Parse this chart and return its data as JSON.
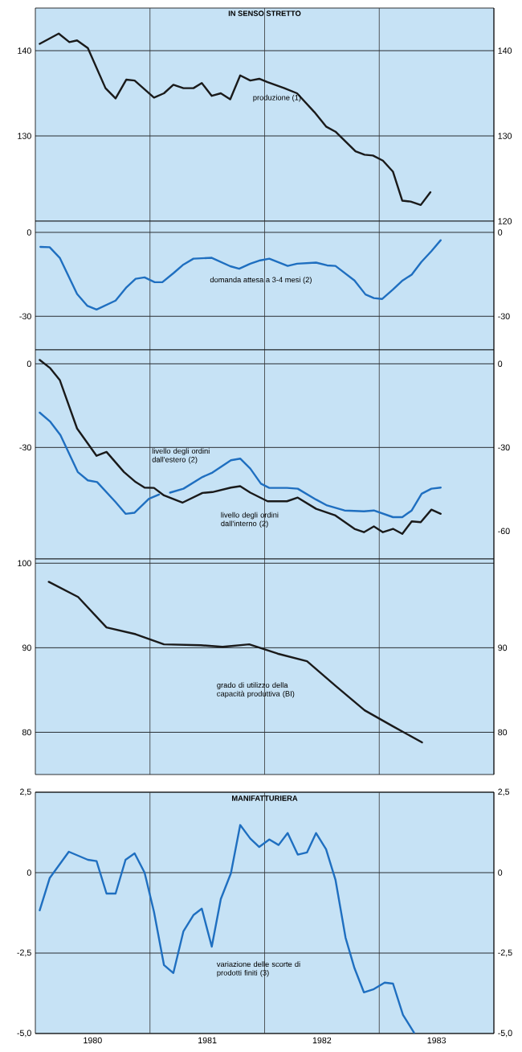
{
  "chart_data": [
    {
      "type": "line",
      "title": "IN SENSO STRETTO",
      "xlim": [
        1980,
        1984
      ],
      "ylim": [
        120,
        145
      ],
      "yticks": [
        130,
        140
      ],
      "y2lim": [
        120,
        145
      ],
      "y2ticks": [
        120,
        130,
        140
      ],
      "tick_labels": "y",
      "grid": "y",
      "legend": false,
      "ref_lines": [
        {
          "axis": "x",
          "value": 1981,
          "color": "#333333"
        },
        {
          "axis": "x",
          "value": 1982,
          "color": "#333333"
        },
        {
          "axis": "x",
          "value": 1983,
          "color": "#333333"
        }
      ],
      "series": [
        {
          "name": "produzione (1)",
          "color": "#1a1a1a",
          "x": [
            1980.038,
            1980.204,
            1980.297,
            1980.364,
            1980.458,
            1980.612,
            1980.7,
            1980.793,
            1980.866,
            1981.035,
            1981.122,
            1981.204,
            1981.292,
            1981.379,
            1981.452,
            1981.539,
            1981.618,
            1981.7,
            1981.787,
            1981.875,
            1981.953,
            1982.026,
            1982.172,
            1982.283,
            1982.434,
            1982.536,
            1982.618,
            1982.793,
            1982.872,
            1982.945,
            1983.032,
            1983.12,
            1983.201,
            1983.274,
            1983.362,
            1983.446
          ],
          "values": [
            140.8,
            142.0,
            141.0,
            141.2,
            140.3,
            135.6,
            134.4,
            136.6,
            136.5,
            134.5,
            135.0,
            136.0,
            135.6,
            135.6,
            136.2,
            134.7,
            135.0,
            134.3,
            137.1,
            136.5,
            136.7,
            136.3,
            135.6,
            135.0,
            132.8,
            131.1,
            130.5,
            128.2,
            127.8,
            127.7,
            127.1,
            125.8,
            122.4,
            122.3,
            121.9,
            123.4
          ]
        }
      ]
    },
    {
      "type": "line",
      "xlim": [
        1980,
        1984
      ],
      "ylim": [
        -42,
        4
      ],
      "yticks": [
        -30,
        0
      ],
      "y2lim": [
        -42,
        4
      ],
      "y2ticks": [
        -30,
        0
      ],
      "tick_labels": "y",
      "grid": "y",
      "legend": false,
      "ref_lines": [
        {
          "axis": "x",
          "value": 1981,
          "color": "#333333"
        },
        {
          "axis": "x",
          "value": 1982,
          "color": "#333333"
        },
        {
          "axis": "x",
          "value": 1983,
          "color": "#333333"
        }
      ],
      "series": [
        {
          "name": "domanda attesa a 3-4 mesi (2)",
          "color": "#1f6fc0",
          "x": [
            1980.044,
            1980.125,
            1980.213,
            1980.364,
            1980.452,
            1980.534,
            1980.7,
            1980.796,
            1980.875,
            1980.953,
            1981.041,
            1981.108,
            1981.21,
            1981.292,
            1981.379,
            1981.539,
            1981.7,
            1981.778,
            1981.875,
            1981.962,
            1982.041,
            1982.201,
            1982.283,
            1982.449,
            1982.545,
            1982.618,
            1982.784,
            1982.88,
            1982.953,
            1983.026,
            1983.12,
            1983.204,
            1983.283,
            1983.367,
            1983.455,
            1983.536
          ],
          "values": [
            -5.2,
            -5.3,
            -9.1,
            -22.0,
            -26.2,
            -27.6,
            -24.4,
            -19.6,
            -16.6,
            -16.1,
            -17.8,
            -17.8,
            -14.4,
            -11.5,
            -9.4,
            -9.1,
            -12.1,
            -13.0,
            -11.2,
            -10.0,
            -9.4,
            -12.0,
            -11.2,
            -10.8,
            -11.8,
            -12.0,
            -17.2,
            -22.2,
            -23.5,
            -23.8,
            -20.4,
            -17.2,
            -15.1,
            -10.6,
            -6.7,
            -2.8
          ]
        }
      ]
    },
    {
      "type": "line",
      "xlim": [
        1980,
        1984
      ],
      "ylim": [
        -70,
        5
      ],
      "yticks": [
        -30,
        0
      ],
      "y2lim": [
        -70,
        5
      ],
      "y2ticks": [
        -60,
        -30,
        0
      ],
      "tick_labels": "y",
      "grid": "y",
      "legend": false,
      "ref_lines": [
        {
          "axis": "x",
          "value": 1981,
          "color": "#333333"
        },
        {
          "axis": "x",
          "value": 1982,
          "color": "#333333"
        },
        {
          "axis": "x",
          "value": 1983,
          "color": "#333333"
        }
      ],
      "series": [
        {
          "name": "livello degli ordini dall'estero (2)",
          "color": "#1f6fc0",
          "x": [
            1980.038,
            1980.131,
            1980.219,
            1980.37,
            1980.458,
            1980.539,
            1980.7,
            1980.787,
            1980.866,
            1980.991,
            1981.079,
            1981.127,
            1981.175,
            1981.292,
            1981.458,
            1981.545,
            1981.706,
            1981.787,
            1981.875,
            1981.968,
            1982.041,
            1982.195,
            1982.289,
            1982.449,
            1982.545,
            1982.697,
            1982.866,
            1982.953,
            1983.12,
            1983.201,
            1983.283,
            1983.37,
            1983.455,
            1983.536
          ],
          "values": [
            -17.5,
            -20.8,
            -25.6,
            -38.8,
            -41.8,
            -42.4,
            -49.6,
            -53.8,
            -53.4,
            -48.4,
            -46.9,
            null,
            -46.2,
            -44.8,
            -40.6,
            -39.0,
            -34.6,
            -34.0,
            -37.6,
            -43.0,
            -44.5,
            -44.5,
            -44.8,
            -48.7,
            -50.8,
            -52.6,
            -52.9,
            -52.6,
            -55.0,
            -55.0,
            -52.6,
            -46.6,
            -44.8,
            -44.4
          ]
        },
        {
          "name": "livello degli ordini dall'interno (2)",
          "color": "#1a1a1a",
          "x": [
            1980.038,
            1980.131,
            1980.213,
            1980.364,
            1980.458,
            1980.534,
            1980.621,
            1980.773,
            1980.875,
            1980.953,
            1981.035,
            1981.122,
            1981.283,
            1981.458,
            1981.545,
            1981.706,
            1981.787,
            1981.875,
            1982.026,
            1982.195,
            1982.289,
            1982.449,
            1982.618,
            1982.784,
            1982.866,
            1982.953,
            1983.032,
            1983.12,
            1983.201,
            1983.283,
            1983.362,
            1983.455,
            1983.536
          ],
          "values": [
            1.4,
            -1.6,
            -5.8,
            -23.2,
            -28.6,
            -33.0,
            -31.6,
            -38.8,
            -42.4,
            -44.4,
            -44.5,
            -47.2,
            -49.8,
            -46.3,
            -46.0,
            -44.4,
            -43.9,
            -46.2,
            -49.3,
            -49.3,
            -48.0,
            -52.0,
            -54.4,
            -59.2,
            -60.4,
            -58.3,
            -60.4,
            -59.2,
            -61.0,
            -56.5,
            -56.8,
            -52.3,
            -53.8
          ]
        }
      ]
    },
    {
      "type": "line",
      "xlim": [
        1980,
        1984
      ],
      "ylim": [
        75,
        100.5
      ],
      "yticks": [
        80,
        90,
        100
      ],
      "y2lim": [
        75,
        100.5
      ],
      "y2ticks": [
        80,
        90
      ],
      "tick_labels": "y",
      "grid": "y",
      "legend": false,
      "ref_lines": [
        {
          "axis": "x",
          "value": 1981,
          "color": "#333333"
        },
        {
          "axis": "x",
          "value": 1982,
          "color": "#333333"
        },
        {
          "axis": "x",
          "value": 1983,
          "color": "#333333"
        }
      ],
      "series": [
        {
          "name": "grado di utilizzo della capacità produttiva (BI)",
          "color": "#1a1a1a",
          "x": [
            1980.117,
            1980.373,
            1980.621,
            1980.875,
            1981.122,
            1981.443,
            1981.633,
            1981.866,
            1982.114,
            1982.37,
            1982.618,
            1982.872,
            1983.12,
            1983.373
          ],
          "values": [
            97.8,
            96.0,
            92.4,
            91.6,
            90.4,
            90.3,
            90.1,
            90.4,
            89.3,
            88.4,
            85.5,
            82.6,
            80.7,
            78.8
          ]
        }
      ]
    },
    {
      "type": "line",
      "title": "MANIFATTURIERA",
      "xlim": [
        1980,
        1984
      ],
      "xticks": [
        {
          "value": 1980.5,
          "label": "1980"
        },
        {
          "value": 1981.5,
          "label": "1981"
        },
        {
          "value": 1982.5,
          "label": "1982"
        },
        {
          "value": 1983.5,
          "label": "1983"
        }
      ],
      "ylim": [
        -5,
        2.5
      ],
      "yticks": [
        {
          "value": -5,
          "label": "-5,0"
        },
        {
          "value": -2.5,
          "label": "-2,5"
        },
        0,
        {
          "value": 2.5,
          "label": "2,5"
        }
      ],
      "y2lim": [
        -5,
        2.5
      ],
      "y2ticks": [
        {
          "value": -5,
          "label": "-5,0"
        },
        {
          "value": -2.5,
          "label": "-2,5"
        },
        0,
        {
          "value": 2.5,
          "label": "2,5"
        }
      ],
      "grid": "y",
      "legend": false,
      "ref_lines": [
        {
          "axis": "x",
          "value": 1981,
          "color": "#333333"
        },
        {
          "axis": "x",
          "value": 1982,
          "color": "#333333"
        },
        {
          "axis": "x",
          "value": 1983,
          "color": "#333333"
        }
      ],
      "series": [
        {
          "name": "variazione delle scorte di prodotti finiti (3)",
          "color": "#1f6fc0",
          "x": [
            1980.038,
            1980.125,
            1980.292,
            1980.458,
            1980.534,
            1980.621,
            1980.7,
            1980.787,
            1980.866,
            1980.953,
            1981.035,
            1981.122,
            1981.204,
            1981.292,
            1981.379,
            1981.452,
            1981.539,
            1981.618,
            1981.706,
            1981.787,
            1981.875,
            1981.953,
            1982.041,
            1982.122,
            1982.201,
            1982.289,
            1982.37,
            1982.449,
            1982.536,
            1982.618,
            1982.706,
            1982.784,
            1982.866,
            1982.953,
            1983.047,
            1983.12,
            1983.207,
            1983.303
          ],
          "values": [
            -1.17,
            -0.17,
            0.65,
            0.4,
            0.36,
            -0.65,
            -0.65,
            0.4,
            0.6,
            0.0,
            -1.22,
            -2.87,
            -3.12,
            -1.82,
            -1.32,
            -1.12,
            -2.3,
            -0.82,
            -0.02,
            1.48,
            1.06,
            0.8,
            1.03,
            0.86,
            1.23,
            0.56,
            0.63,
            1.23,
            0.73,
            -0.22,
            -2.02,
            -2.97,
            -3.72,
            -3.62,
            -3.42,
            -3.45,
            -4.42,
            -4.97
          ]
        }
      ]
    }
  ]
}
